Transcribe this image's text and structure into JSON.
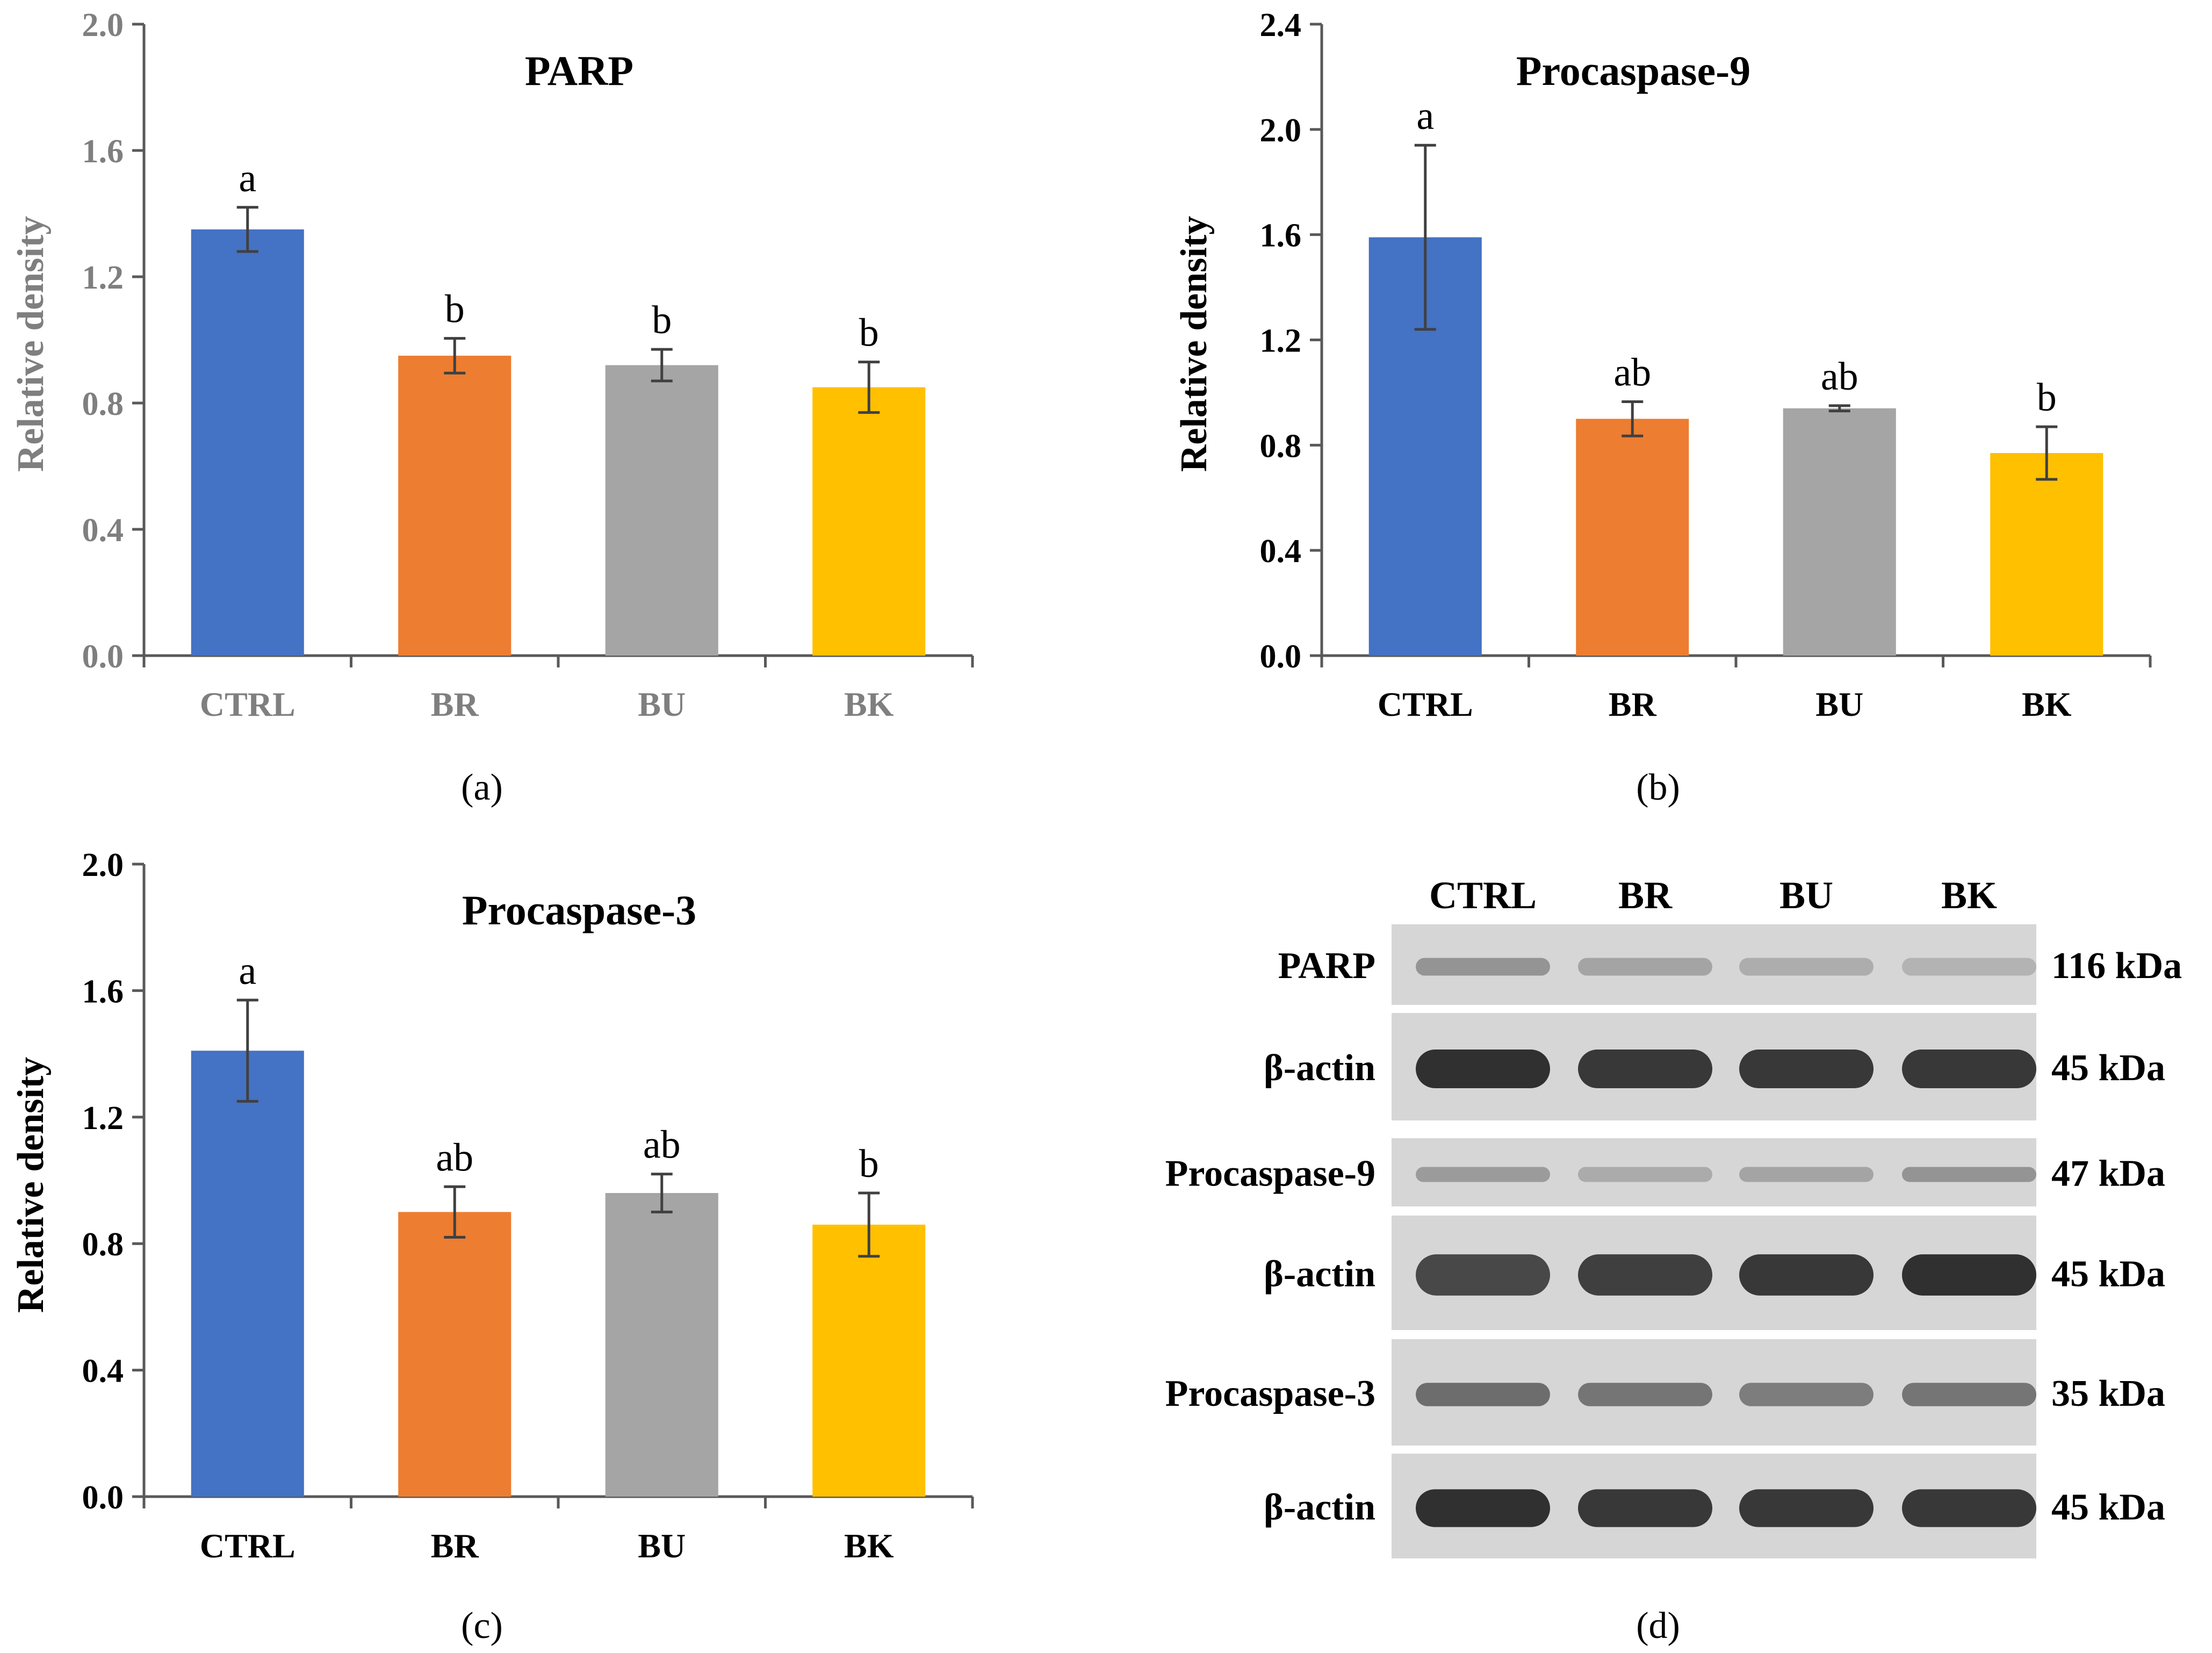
{
  "chart_data": [
    {
      "panel": "(a)",
      "type": "bar",
      "title": "PARP",
      "xlabel": "",
      "ylabel": "Relative density",
      "ylim": [
        0,
        2.0
      ],
      "yticks": [
        "0.0",
        "0.4",
        "0.8",
        "1.2",
        "1.6",
        "2.0"
      ],
      "categories": [
        "CTRL",
        "BR",
        "BU",
        "BK"
      ],
      "values": [
        1.35,
        0.95,
        0.92,
        0.85
      ],
      "errors": [
        0.07,
        0.055,
        0.05,
        0.08
      ],
      "letters": [
        "a",
        "b",
        "b",
        "b"
      ],
      "colors": [
        "#4472C4",
        "#ED7D31",
        "#A5A5A5",
        "#FFC000"
      ],
      "axis_text_color": "#7f7f7f"
    },
    {
      "panel": "(b)",
      "type": "bar",
      "title": "Procaspase-9",
      "xlabel": "",
      "ylabel": "Relative density",
      "ylim": [
        0,
        2.4
      ],
      "yticks": [
        "0.0",
        "0.4",
        "0.8",
        "1.2",
        "1.6",
        "2.0",
        "2.4"
      ],
      "categories": [
        "CTRL",
        "BR",
        "BU",
        "BK"
      ],
      "values": [
        1.59,
        0.9,
        0.94,
        0.77
      ],
      "errors": [
        0.35,
        0.065,
        0.01,
        0.1
      ],
      "letters": [
        "a",
        "ab",
        "ab",
        "b"
      ],
      "colors": [
        "#4472C4",
        "#ED7D31",
        "#A5A5A5",
        "#FFC000"
      ],
      "axis_text_color": "#000000"
    },
    {
      "panel": "(c)",
      "type": "bar",
      "title": "Procaspase-3",
      "xlabel": "",
      "ylabel": "Relative density",
      "ylim": [
        0,
        2.0
      ],
      "yticks": [
        "0.0",
        "0.4",
        "0.8",
        "1.2",
        "1.6",
        "2.0"
      ],
      "categories": [
        "CTRL",
        "BR",
        "BU",
        "BK"
      ],
      "values": [
        1.41,
        0.9,
        0.96,
        0.86
      ],
      "errors": [
        0.16,
        0.08,
        0.06,
        0.1
      ],
      "letters": [
        "a",
        "ab",
        "ab",
        "b"
      ],
      "colors": [
        "#4472C4",
        "#ED7D31",
        "#A5A5A5",
        "#FFC000"
      ],
      "axis_text_color": "#000000"
    }
  ],
  "blot": {
    "panel": "(d)",
    "lanes": [
      "CTRL",
      "BR",
      "BU",
      "BK"
    ],
    "rows": [
      {
        "label": "PARP",
        "size": "116 kDa",
        "intensities": [
          0.35,
          0.25,
          0.18,
          0.15
        ]
      },
      {
        "label": "β-actin",
        "size": "45 kDa",
        "intensities": [
          1.0,
          0.95,
          0.95,
          0.95
        ]
      },
      {
        "label": "Procaspase-9",
        "size": "47 kDa",
        "intensities": [
          0.3,
          0.2,
          0.25,
          0.35
        ]
      },
      {
        "label": "β-actin",
        "size": "45 kDa",
        "intensities": [
          0.85,
          0.9,
          0.95,
          1.0
        ]
      },
      {
        "label": "Procaspase-3",
        "size": "35 kDa",
        "intensities": [
          0.6,
          0.55,
          0.5,
          0.55
        ]
      },
      {
        "label": "β-actin",
        "size": "45 kDa",
        "intensities": [
          1.0,
          0.95,
          0.95,
          0.95
        ]
      }
    ]
  }
}
